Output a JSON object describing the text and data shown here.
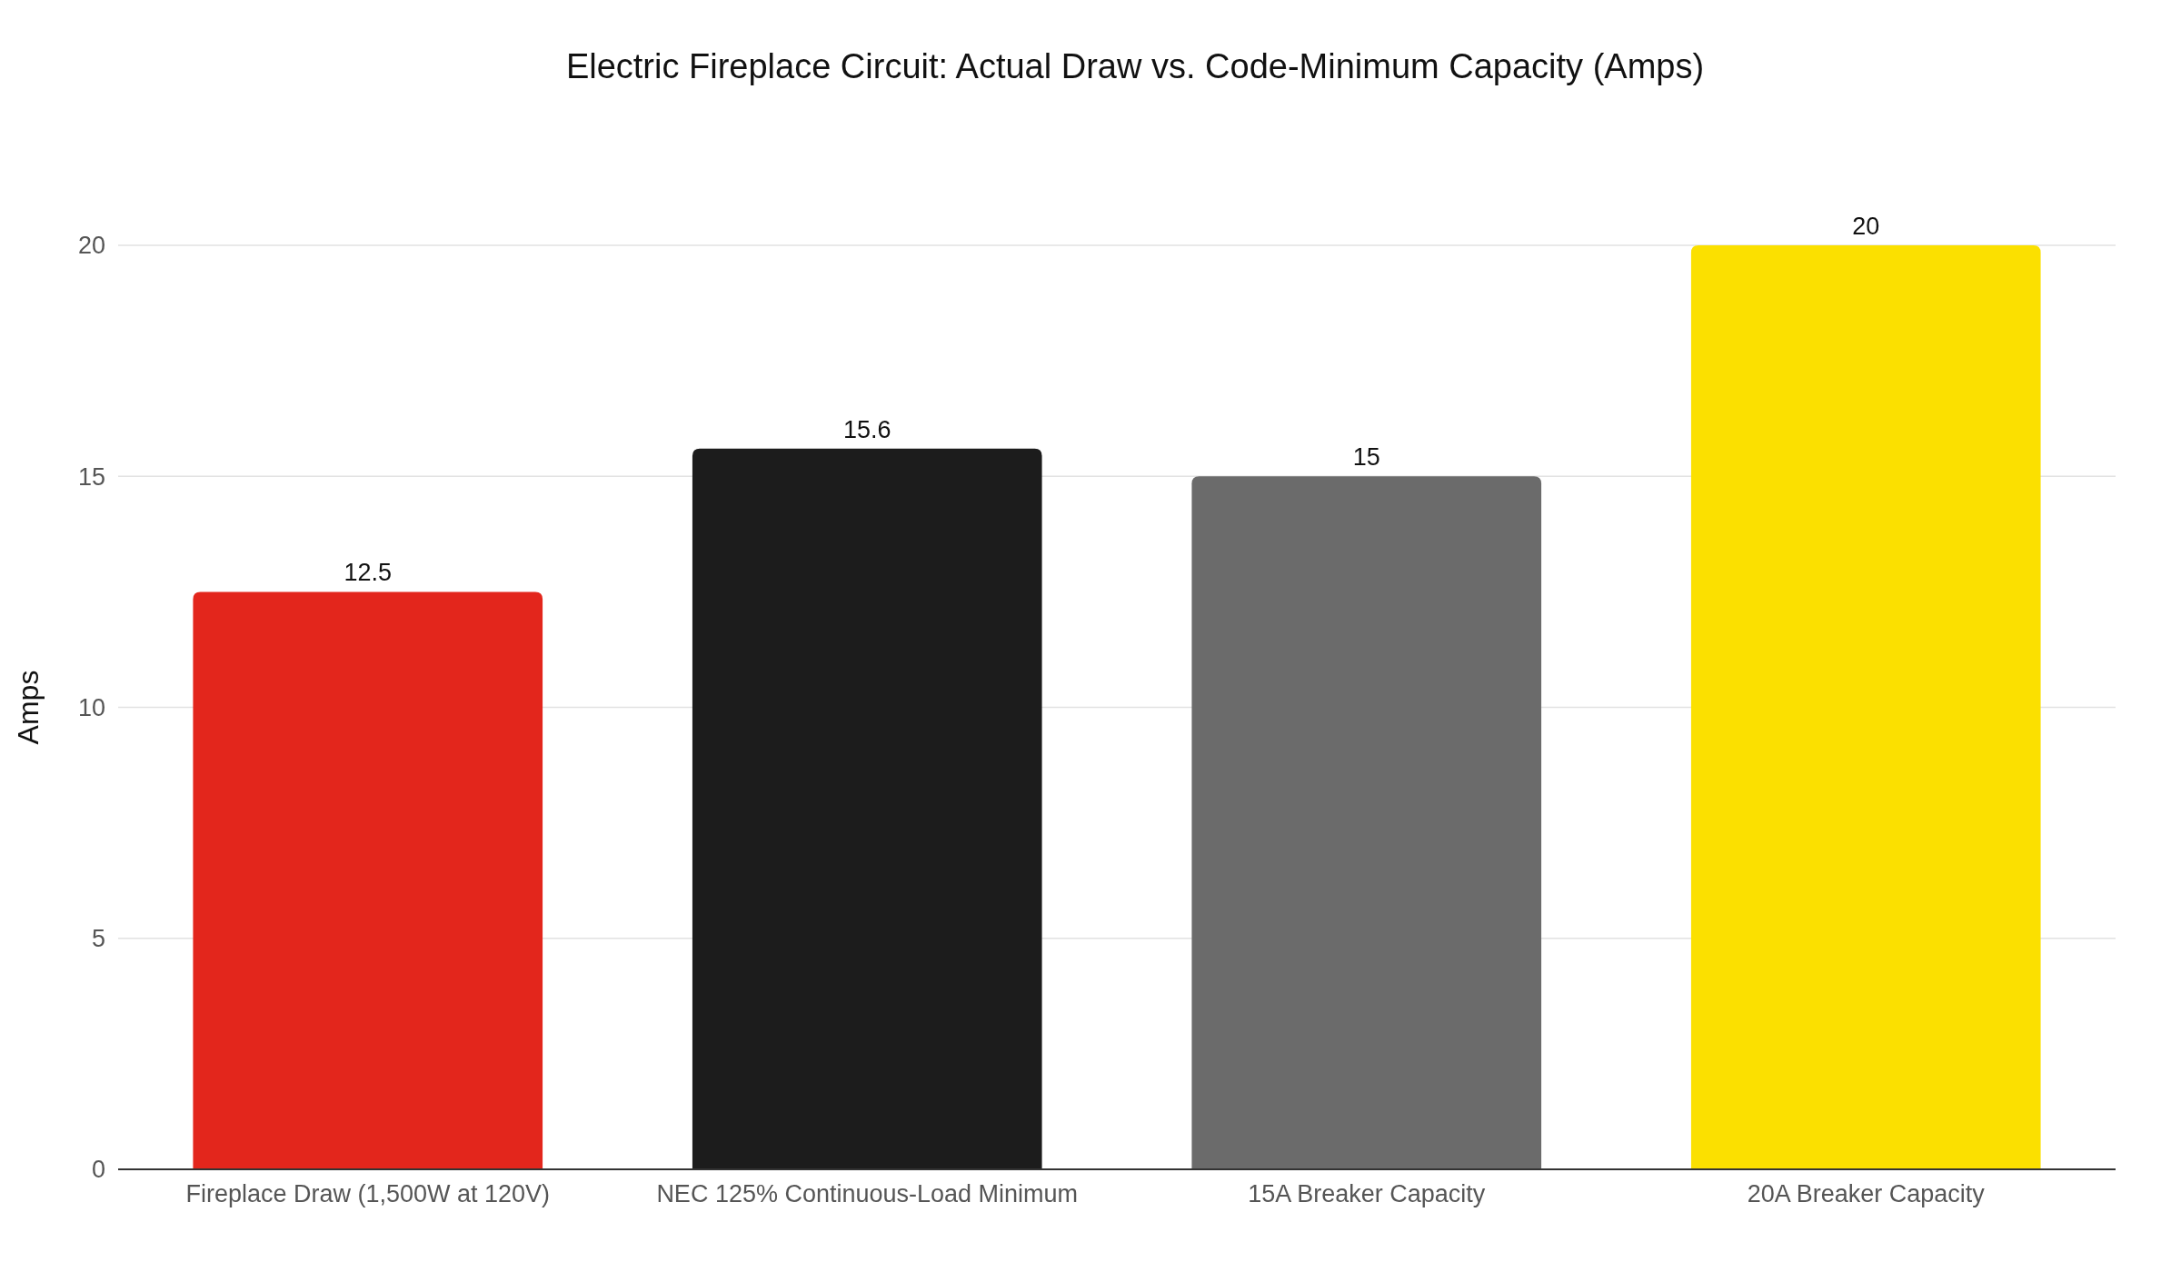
{
  "chart_data": {
    "type": "bar",
    "title": "Electric Fireplace Circuit: Actual Draw vs. Code-Minimum Capacity (Amps)",
    "ylabel": "Amps",
    "categories": [
      "Fireplace Draw (1,500W at 120V)",
      "NEC 125% Continuous-Load Minimum",
      "15A Breaker Capacity",
      "20A Breaker Capacity"
    ],
    "values": [
      12.5,
      15.6,
      15,
      20
    ],
    "colors": [
      "#e3261c",
      "#1c1c1c",
      "#6b6b6b",
      "#fbe000"
    ],
    "ylim": [
      0,
      20
    ],
    "yticks": [
      0,
      5,
      10,
      15,
      20
    ],
    "grid": "y",
    "data_labels": true
  }
}
